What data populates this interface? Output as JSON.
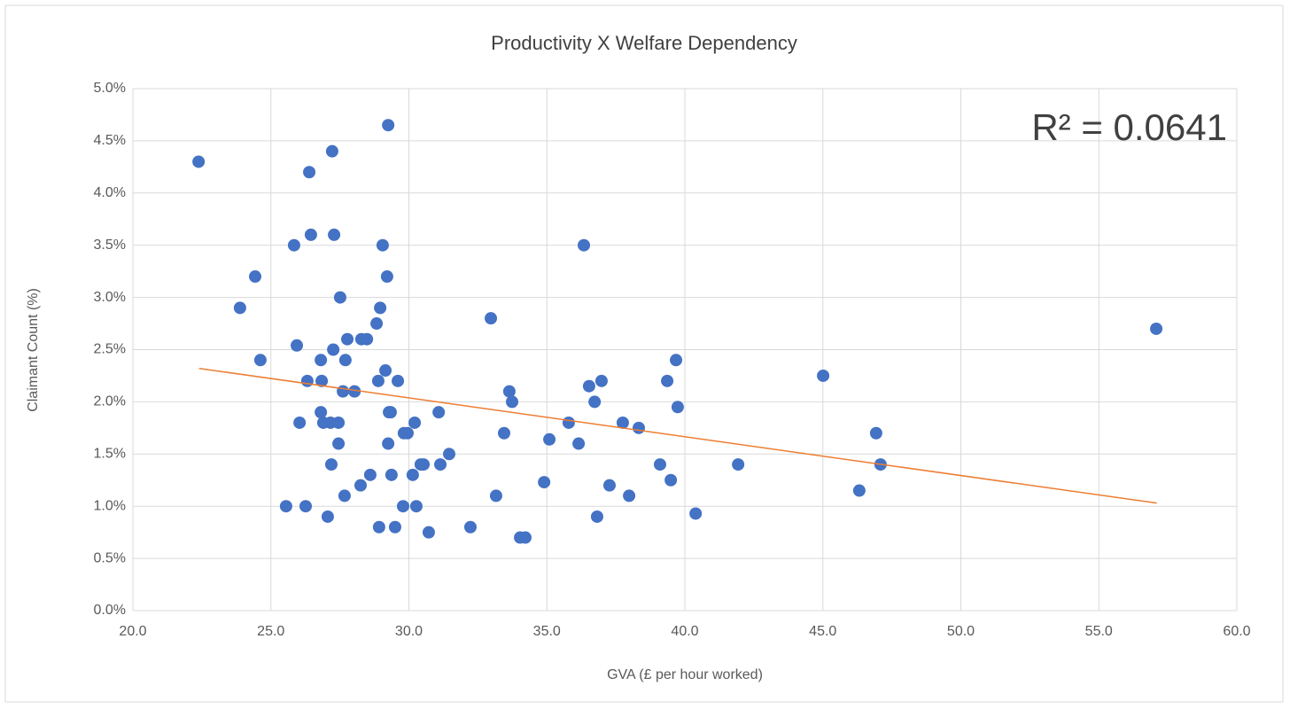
{
  "chart_data": {
    "type": "scatter",
    "title": "Productivity X Welfare Dependency",
    "x_label": "GVA (£ per hour worked)",
    "y_label": "Claimant Count (%)",
    "annotation": "R² = 0.0641",
    "color": "#4472c4",
    "grid": true,
    "xlim": [
      20,
      60
    ],
    "ylim": [
      0,
      5
    ],
    "xticks": [
      {
        "value": 20,
        "label": "20.0"
      },
      {
        "value": 25,
        "label": "25.0"
      },
      {
        "value": 30,
        "label": "30.0"
      },
      {
        "value": 35,
        "label": "35.0"
      },
      {
        "value": 40,
        "label": "40.0"
      },
      {
        "value": 45,
        "label": "45.0"
      },
      {
        "value": 50,
        "label": "50.0"
      },
      {
        "value": 55,
        "label": "55.0"
      },
      {
        "value": 60,
        "label": "60.0"
      }
    ],
    "yticks": [
      {
        "value": 0,
        "label": "0.0%"
      },
      {
        "value": 0.5,
        "label": "0.5%"
      },
      {
        "value": 1,
        "label": "1.0%"
      },
      {
        "value": 1.5,
        "label": "1.5%"
      },
      {
        "value": 2,
        "label": "2.0%"
      },
      {
        "value": 2.5,
        "label": "2.5%"
      },
      {
        "value": 3,
        "label": "3.0%"
      },
      {
        "value": 3.5,
        "label": "3.5%"
      },
      {
        "value": 4,
        "label": "4.0%"
      },
      {
        "value": 4.5,
        "label": "4.5%"
      },
      {
        "value": 5,
        "label": "5.0%"
      }
    ],
    "x": [
      22.38,
      23.88,
      24.43,
      24.62,
      25.55,
      25.84,
      25.94,
      26.04,
      26.26,
      26.32,
      26.39,
      26.45,
      26.81,
      26.81,
      26.84,
      26.9,
      27.06,
      27.16,
      27.19,
      27.22,
      27.26,
      27.29,
      27.45,
      27.45,
      27.51,
      27.61,
      27.67,
      27.7,
      27.77,
      28.03,
      28.25,
      28.28,
      28.48,
      28.6,
      28.83,
      28.89,
      28.92,
      28.96,
      29.05,
      29.15,
      29.21,
      29.25,
      29.25,
      29.28,
      29.34,
      29.37,
      29.5,
      29.6,
      29.79,
      29.82,
      29.95,
      30.14,
      30.21,
      30.27,
      30.43,
      30.53,
      30.72,
      31.08,
      31.14,
      31.46,
      32.23,
      32.97,
      33.16,
      33.45,
      33.64,
      33.74,
      34.03,
      34.22,
      34.9,
      35.09,
      35.79,
      36.15,
      36.34,
      36.53,
      36.73,
      36.82,
      36.98,
      37.27,
      37.75,
      37.98,
      38.33,
      39.1,
      39.36,
      39.49,
      39.68,
      39.74,
      40.39,
      41.93,
      45.01,
      46.32,
      46.93,
      47.09,
      57.08
    ],
    "values": [
      4.3,
      2.9,
      3.2,
      2.4,
      1.0,
      3.5,
      2.54,
      1.8,
      1.0,
      2.2,
      4.2,
      3.6,
      2.4,
      1.9,
      2.2,
      1.8,
      0.9,
      1.8,
      1.4,
      4.4,
      2.5,
      3.6,
      1.8,
      1.6,
      3.0,
      2.1,
      1.1,
      2.4,
      2.6,
      2.1,
      1.2,
      2.6,
      2.6,
      1.3,
      2.75,
      2.2,
      0.8,
      2.9,
      3.5,
      2.3,
      3.2,
      1.6,
      4.65,
      1.9,
      1.9,
      1.3,
      0.8,
      2.2,
      1.0,
      1.7,
      1.7,
      1.3,
      1.8,
      1.0,
      1.4,
      1.4,
      0.75,
      1.9,
      1.4,
      1.5,
      0.8,
      2.8,
      1.1,
      1.7,
      2.1,
      2.0,
      0.7,
      0.7,
      1.23,
      1.64,
      1.8,
      1.6,
      3.5,
      2.15,
      2.0,
      0.9,
      2.2,
      1.2,
      1.8,
      1.1,
      1.75,
      1.4,
      2.2,
      1.25,
      2.4,
      1.95,
      0.93,
      1.4,
      2.25,
      1.15,
      1.7,
      1.4,
      2.7
    ],
    "trendline": {
      "x": [
        22.4,
        57.1
      ],
      "values": [
        2.32,
        1.03
      ],
      "color": "#ed7d31"
    }
  }
}
